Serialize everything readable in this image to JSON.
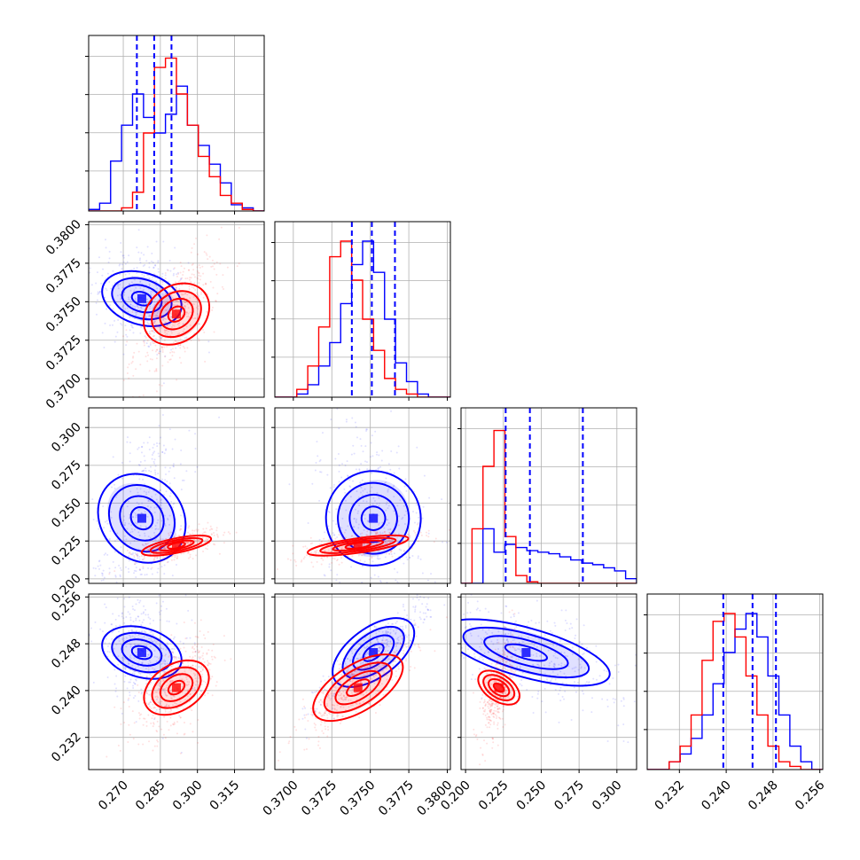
{
  "chart_data": {
    "type": "corner",
    "parameters": [
      {
        "index": 0,
        "range": [
          0.256,
          0.327
        ],
        "ticks": [
          "0.270",
          "0.285",
          "0.300",
          "0.315"
        ],
        "tick_values": [
          0.27,
          0.285,
          0.3,
          0.315
        ]
      },
      {
        "index": 1,
        "range": [
          0.3688,
          0.3802
        ],
        "ticks": [
          "0.3700",
          "0.3725",
          "0.3750",
          "0.3775",
          "0.3800"
        ],
        "tick_values": [
          0.37,
          0.3725,
          0.375,
          0.3775,
          0.38
        ]
      },
      {
        "index": 2,
        "range": [
          0.197,
          0.313
        ],
        "ticks": [
          "0.200",
          "0.225",
          "0.250",
          "0.275",
          "0.300"
        ],
        "tick_values": [
          0.2,
          0.225,
          0.25,
          0.275,
          0.3
        ]
      },
      {
        "index": 3,
        "range": [
          0.2265,
          0.2565
        ],
        "ticks": [
          "0.232",
          "0.240",
          "0.248",
          "0.256"
        ],
        "tick_values": [
          0.232,
          0.24,
          0.248,
          0.256
        ]
      }
    ],
    "series": [
      {
        "color": "#0000ff",
        "mean": [
          0.2775,
          0.3752,
          0.24,
          0.2465
        ],
        "std": [
          0.0075,
          0.0014,
          0.026,
          0.0035
        ],
        "marginal_quantiles": [
          [
            0.2755,
            0.2825,
            0.2895
          ],
          [
            0.3738,
            0.3751,
            0.3766
          ],
          [
            0.2265,
            0.2425,
            0.2775
          ],
          [
            0.2395,
            0.2445,
            0.2485
          ]
        ],
        "histograms": [
          [
            0.01,
            0.05,
            0.32,
            0.55,
            0.75,
            0.6,
            0.5,
            0.62,
            0.8,
            0.55,
            0.42,
            0.3,
            0.18,
            0.04,
            0.02,
            0.0
          ],
          [
            0.0,
            0.0,
            0.02,
            0.08,
            0.2,
            0.35,
            0.6,
            0.85,
            1.0,
            0.8,
            0.5,
            0.22,
            0.1,
            0.02,
            0.0,
            0.0
          ],
          [
            0.0,
            0.0,
            0.35,
            0.2,
            0.25,
            0.23,
            0.21,
            0.2,
            0.19,
            0.17,
            0.15,
            0.13,
            0.12,
            0.1,
            0.08,
            0.03
          ],
          [
            0.0,
            0.0,
            0.05,
            0.1,
            0.2,
            0.35,
            0.55,
            0.75,
            0.9,
            1.0,
            0.85,
            0.6,
            0.35,
            0.15,
            0.05,
            0.0
          ]
        ]
      },
      {
        "color": "#ff0000",
        "mean": [
          0.2915,
          0.3742,
          0.222,
          0.2405
        ],
        "std": [
          0.0065,
          0.0015,
          0.004,
          0.0033
        ],
        "marginal_quantiles": [],
        "histograms": [
          [
            0.0,
            0.0,
            0.0,
            0.02,
            0.12,
            0.5,
            0.92,
            0.98,
            0.75,
            0.55,
            0.35,
            0.22,
            0.1,
            0.05,
            0.01,
            0.0
          ],
          [
            0.0,
            0.0,
            0.05,
            0.2,
            0.45,
            0.9,
            1.0,
            0.75,
            0.5,
            0.3,
            0.12,
            0.05,
            0.02,
            0.0,
            0.0,
            0.0
          ],
          [
            0.0,
            0.35,
            0.75,
            0.98,
            0.3,
            0.05,
            0.01,
            0.0,
            0.0,
            0.0,
            0.0,
            0.0,
            0.0,
            0.0,
            0.0,
            0.0
          ],
          [
            0.0,
            0.0,
            0.05,
            0.15,
            0.35,
            0.7,
            0.95,
            1.0,
            0.85,
            0.6,
            0.35,
            0.15,
            0.05,
            0.02,
            0.0,
            0.0
          ]
        ]
      }
    ],
    "grid": true,
    "legend": "none"
  }
}
